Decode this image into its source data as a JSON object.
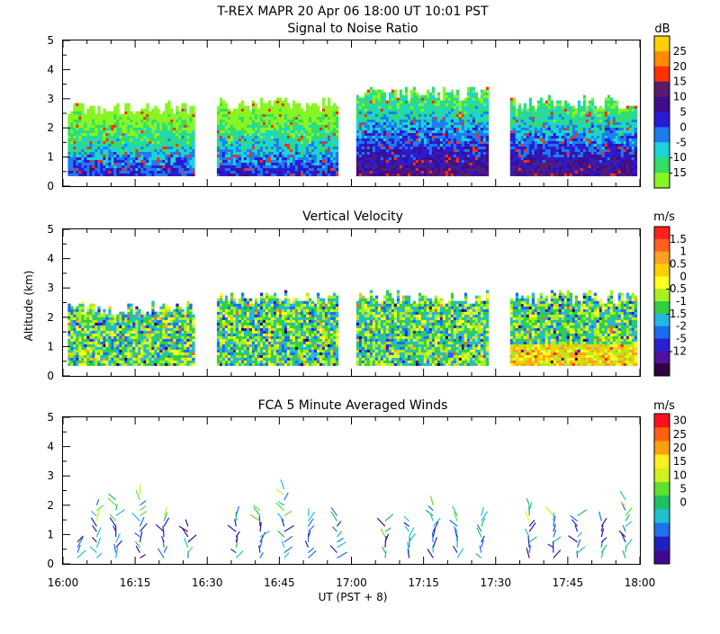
{
  "header": {
    "line1": "T-REX   MAPR 20 Apr 06   18:00 UT   10:01   PST"
  },
  "x_axis": {
    "label": "UT  (PST + 8)",
    "ticks": [
      "16:00",
      "16:15",
      "16:30",
      "16:45",
      "17:00",
      "17:15",
      "17:30",
      "17:45",
      "18:00"
    ]
  },
  "y_axis_label": "Altitude  (km)",
  "panels": [
    {
      "id": "snr",
      "title": "Signal to Noise Ratio",
      "unit": "dB",
      "colorbar_labels": [
        "25",
        "20",
        "15",
        "10",
        "5",
        "0",
        "-5",
        "-10",
        "-15"
      ],
      "colors": [
        "#ffd000",
        "#ff8c00",
        "#ff3000",
        "#5a1a6e",
        "#3c0e8c",
        "#2a1ad6",
        "#1c7cf0",
        "#1ad4d8",
        "#33dd66",
        "#88f522"
      ]
    },
    {
      "id": "vv",
      "title": "Vertical Velocity",
      "unit": "m/s",
      "colorbar_labels": [
        "1.5",
        "1",
        "0.5",
        "0",
        "-0.5",
        "-1",
        "-1.5",
        "-2",
        "-5",
        "-12"
      ],
      "colors": [
        "#ff2020",
        "#ff6020",
        "#ffa020",
        "#ffd000",
        "#ffff20",
        "#a8f020",
        "#30d040",
        "#20b8e0",
        "#1a6cf0",
        "#2a20d0",
        "#5010a0",
        "#300040"
      ]
    },
    {
      "id": "wind",
      "title": "FCA 5 Minute Averaged Winds",
      "unit": "m/s",
      "colorbar_labels": [
        "30",
        "25",
        "20",
        "15",
        "10",
        "5",
        "0"
      ],
      "colors": [
        "#ff1020",
        "#ff6010",
        "#ffa010",
        "#ffee20",
        "#d0f020",
        "#60e030",
        "#20c060",
        "#20c0d0",
        "#2070f0",
        "#2020c0",
        "#400a90"
      ]
    }
  ],
  "chart_data": [
    {
      "type": "heatmap",
      "title": "Signal to Noise Ratio",
      "xlabel": "UT  (PST + 8)",
      "ylabel": "Altitude  (km)",
      "xlim": [
        "16:00",
        "18:00"
      ],
      "ylim": [
        0,
        5
      ],
      "colorbar_unit": "dB",
      "colorbar_range": [
        -15,
        25
      ],
      "data_segments_ut": [
        [
          "16:01",
          "16:27"
        ],
        [
          "16:32",
          "16:57"
        ],
        [
          "17:01",
          "17:28"
        ],
        [
          "17:33",
          "17:59"
        ]
      ],
      "max_echo_altitude_km": [
        2.7,
        2.8,
        3.2,
        2.9
      ]
    },
    {
      "type": "heatmap",
      "title": "Vertical Velocity",
      "xlabel": "UT  (PST + 8)",
      "ylabel": "Altitude  (km)",
      "xlim": [
        "16:00",
        "18:00"
      ],
      "ylim": [
        0,
        5
      ],
      "colorbar_unit": "m/s",
      "colorbar_range": [
        -12,
        1.5
      ],
      "data_segments_ut": [
        [
          "16:01",
          "16:27"
        ],
        [
          "16:32",
          "16:57"
        ],
        [
          "17:01",
          "17:28"
        ],
        [
          "17:33",
          "17:59"
        ]
      ],
      "max_echo_altitude_km": [
        2.3,
        2.7,
        2.7,
        2.7
      ]
    },
    {
      "type": "scatter",
      "subtype": "wind_barbs",
      "title": "FCA 5 Minute Averaged Winds",
      "xlabel": "UT  (PST + 8)",
      "ylabel": "Altitude  (km)",
      "xlim": [
        "16:00",
        "18:00"
      ],
      "ylim": [
        0,
        5
      ],
      "colorbar_unit": "m/s",
      "colorbar_range": [
        0,
        30
      ],
      "barb_times_ut": [
        "16:03",
        "16:07",
        "16:11",
        "16:16",
        "16:21",
        "16:26",
        "16:36",
        "16:41",
        "16:46",
        "16:51",
        "16:57",
        "17:07",
        "17:12",
        "17:17",
        "17:22",
        "17:27",
        "17:37",
        "17:42",
        "17:47",
        "17:52",
        "17:57"
      ],
      "barb_top_altitude_km": [
        0.8,
        2.0,
        2.3,
        2.5,
        1.7,
        1.4,
        1.8,
        1.9,
        2.7,
        1.7,
        1.8,
        1.5,
        1.6,
        2.1,
        1.7,
        1.8,
        2.1,
        1.8,
        1.8,
        1.6,
        2.3
      ]
    }
  ]
}
